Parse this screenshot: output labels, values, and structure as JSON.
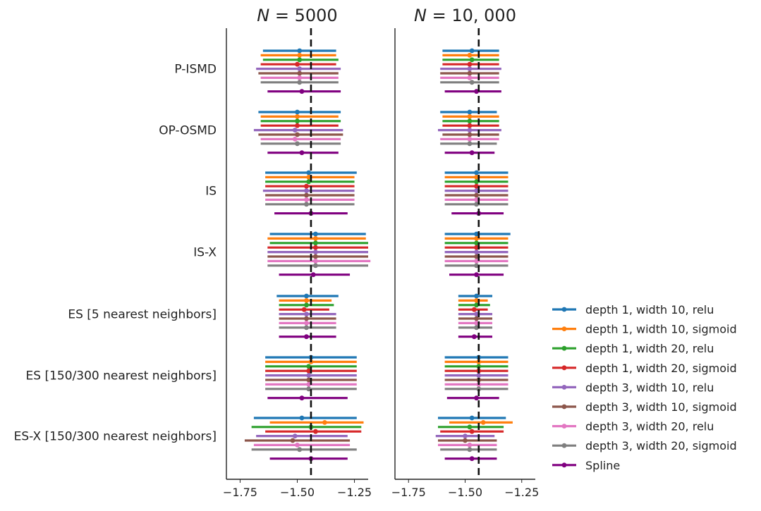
{
  "chart_data": {
    "type": "forest",
    "reference_line": -1.44,
    "xlim": [
      -1.81,
      -1.19
    ],
    "xticks": [
      -1.75,
      -1.5,
      -1.25
    ],
    "xtick_labels": [
      "−1.75",
      "−1.50",
      "−1.25"
    ],
    "categories": [
      "P-ISMD",
      "OP-OSMD",
      "IS",
      "IS-X",
      "ES [5 nearest neighbors]",
      "ES [150/300 nearest neighbors]",
      "ES-X [150/300 nearest neighbors]"
    ],
    "series": [
      {
        "name": "depth 1, width 10, relu",
        "color": "#1f77b4"
      },
      {
        "name": "depth 1, width 10, sigmoid",
        "color": "#ff7f0e"
      },
      {
        "name": "depth 1, width 20, relu",
        "color": "#2ca02c"
      },
      {
        "name": "depth 1, width 20, sigmoid",
        "color": "#d62728"
      },
      {
        "name": "depth 3, width 10, relu",
        "color": "#9467bd"
      },
      {
        "name": "depth 3, width 10, sigmoid",
        "color": "#8c564b"
      },
      {
        "name": "depth 3, width 20, relu",
        "color": "#e377c2"
      },
      {
        "name": "depth 3, width 20, sigmoid",
        "color": "#7f7f7f"
      },
      {
        "name": "Spline",
        "color": "#800080"
      }
    ],
    "panels": [
      {
        "title_var": "N",
        "title_eq": " = 5000",
        "data": [
          [
            [
              -1.65,
              -1.49,
              -1.33
            ],
            [
              -1.66,
              -1.49,
              -1.33
            ],
            [
              -1.65,
              -1.49,
              -1.32
            ],
            [
              -1.66,
              -1.5,
              -1.33
            ],
            [
              -1.68,
              -1.49,
              -1.31
            ],
            [
              -1.67,
              -1.49,
              -1.32
            ],
            [
              -1.66,
              -1.49,
              -1.32
            ],
            [
              -1.66,
              -1.49,
              -1.32
            ],
            [
              -1.63,
              -1.48,
              -1.31
            ]
          ],
          [
            [
              -1.67,
              -1.5,
              -1.31
            ],
            [
              -1.66,
              -1.5,
              -1.32
            ],
            [
              -1.66,
              -1.5,
              -1.31
            ],
            [
              -1.66,
              -1.5,
              -1.32
            ],
            [
              -1.69,
              -1.51,
              -1.3
            ],
            [
              -1.67,
              -1.5,
              -1.3
            ],
            [
              -1.66,
              -1.51,
              -1.31
            ],
            [
              -1.66,
              -1.5,
              -1.31
            ],
            [
              -1.63,
              -1.48,
              -1.32
            ]
          ],
          [
            [
              -1.64,
              -1.45,
              -1.24
            ],
            [
              -1.64,
              -1.45,
              -1.25
            ],
            [
              -1.64,
              -1.45,
              -1.25
            ],
            [
              -1.64,
              -1.46,
              -1.25
            ],
            [
              -1.65,
              -1.46,
              -1.25
            ],
            [
              -1.64,
              -1.46,
              -1.25
            ],
            [
              -1.64,
              -1.46,
              -1.25
            ],
            [
              -1.64,
              -1.46,
              -1.25
            ],
            [
              -1.6,
              -1.44,
              -1.28
            ]
          ],
          [
            [
              -1.62,
              -1.42,
              -1.2
            ],
            [
              -1.63,
              -1.42,
              -1.2
            ],
            [
              -1.62,
              -1.42,
              -1.19
            ],
            [
              -1.63,
              -1.42,
              -1.19
            ],
            [
              -1.63,
              -1.42,
              -1.19
            ],
            [
              -1.63,
              -1.42,
              -1.19
            ],
            [
              -1.63,
              -1.42,
              -1.18
            ],
            [
              -1.63,
              -1.42,
              -1.19
            ],
            [
              -1.58,
              -1.43,
              -1.27
            ]
          ],
          [
            [
              -1.59,
              -1.46,
              -1.32
            ],
            [
              -1.58,
              -1.46,
              -1.35
            ],
            [
              -1.58,
              -1.46,
              -1.34
            ],
            [
              -1.58,
              -1.47,
              -1.36
            ],
            [
              -1.58,
              -1.46,
              -1.33
            ],
            [
              -1.58,
              -1.46,
              -1.33
            ],
            [
              -1.58,
              -1.46,
              -1.33
            ],
            [
              -1.58,
              -1.46,
              -1.33
            ],
            [
              -1.58,
              -1.46,
              -1.33
            ]
          ],
          [
            [
              -1.64,
              -1.44,
              -1.24
            ],
            [
              -1.64,
              -1.44,
              -1.24
            ],
            [
              -1.64,
              -1.45,
              -1.24
            ],
            [
              -1.64,
              -1.45,
              -1.24
            ],
            [
              -1.64,
              -1.45,
              -1.24
            ],
            [
              -1.64,
              -1.45,
              -1.24
            ],
            [
              -1.64,
              -1.45,
              -1.24
            ],
            [
              -1.64,
              -1.45,
              -1.24
            ],
            [
              -1.63,
              -1.48,
              -1.28
            ]
          ],
          [
            [
              -1.69,
              -1.48,
              -1.24
            ],
            [
              -1.62,
              -1.38,
              -1.21
            ],
            [
              -1.7,
              -1.44,
              -1.22
            ],
            [
              -1.64,
              -1.42,
              -1.22
            ],
            [
              -1.68,
              -1.51,
              -1.28
            ],
            [
              -1.73,
              -1.52,
              -1.27
            ],
            [
              -1.69,
              -1.5,
              -1.27
            ],
            [
              -1.7,
              -1.49,
              -1.24
            ],
            [
              -1.62,
              -1.44,
              -1.28
            ]
          ]
        ]
      },
      {
        "title_var": "N",
        "title_eq": " = 10, 000",
        "data": [
          [
            [
              -1.6,
              -1.47,
              -1.35
            ],
            [
              -1.6,
              -1.48,
              -1.35
            ],
            [
              -1.6,
              -1.47,
              -1.35
            ],
            [
              -1.6,
              -1.48,
              -1.35
            ],
            [
              -1.61,
              -1.48,
              -1.34
            ],
            [
              -1.61,
              -1.48,
              -1.35
            ],
            [
              -1.61,
              -1.48,
              -1.35
            ],
            [
              -1.61,
              -1.47,
              -1.35
            ],
            [
              -1.59,
              -1.45,
              -1.34
            ]
          ],
          [
            [
              -1.61,
              -1.48,
              -1.36
            ],
            [
              -1.6,
              -1.48,
              -1.35
            ],
            [
              -1.6,
              -1.48,
              -1.35
            ],
            [
              -1.6,
              -1.48,
              -1.35
            ],
            [
              -1.62,
              -1.48,
              -1.34
            ],
            [
              -1.6,
              -1.48,
              -1.35
            ],
            [
              -1.61,
              -1.48,
              -1.35
            ],
            [
              -1.61,
              -1.48,
              -1.36
            ],
            [
              -1.59,
              -1.47,
              -1.37
            ]
          ],
          [
            [
              -1.59,
              -1.45,
              -1.31
            ],
            [
              -1.59,
              -1.45,
              -1.31
            ],
            [
              -1.59,
              -1.45,
              -1.31
            ],
            [
              -1.59,
              -1.45,
              -1.31
            ],
            [
              -1.59,
              -1.45,
              -1.31
            ],
            [
              -1.59,
              -1.45,
              -1.31
            ],
            [
              -1.59,
              -1.45,
              -1.31
            ],
            [
              -1.59,
              -1.45,
              -1.31
            ],
            [
              -1.56,
              -1.44,
              -1.33
            ]
          ],
          [
            [
              -1.59,
              -1.45,
              -1.3
            ],
            [
              -1.59,
              -1.45,
              -1.31
            ],
            [
              -1.59,
              -1.45,
              -1.31
            ],
            [
              -1.59,
              -1.45,
              -1.31
            ],
            [
              -1.59,
              -1.45,
              -1.31
            ],
            [
              -1.59,
              -1.45,
              -1.31
            ],
            [
              -1.59,
              -1.45,
              -1.31
            ],
            [
              -1.59,
              -1.45,
              -1.31
            ],
            [
              -1.57,
              -1.45,
              -1.33
            ]
          ],
          [
            [
              -1.53,
              -1.45,
              -1.38
            ],
            [
              -1.53,
              -1.45,
              -1.4
            ],
            [
              -1.53,
              -1.45,
              -1.39
            ],
            [
              -1.53,
              -1.46,
              -1.4
            ],
            [
              -1.53,
              -1.45,
              -1.38
            ],
            [
              -1.53,
              -1.45,
              -1.38
            ],
            [
              -1.53,
              -1.45,
              -1.38
            ],
            [
              -1.53,
              -1.45,
              -1.38
            ],
            [
              -1.53,
              -1.46,
              -1.38
            ]
          ],
          [
            [
              -1.59,
              -1.44,
              -1.31
            ],
            [
              -1.59,
              -1.44,
              -1.31
            ],
            [
              -1.59,
              -1.44,
              -1.31
            ],
            [
              -1.59,
              -1.44,
              -1.31
            ],
            [
              -1.59,
              -1.44,
              -1.31
            ],
            [
              -1.59,
              -1.44,
              -1.31
            ],
            [
              -1.59,
              -1.44,
              -1.31
            ],
            [
              -1.59,
              -1.44,
              -1.31
            ],
            [
              -1.58,
              -1.45,
              -1.35
            ]
          ],
          [
            [
              -1.62,
              -1.47,
              -1.32
            ],
            [
              -1.57,
              -1.42,
              -1.29
            ],
            [
              -1.62,
              -1.48,
              -1.33
            ],
            [
              -1.61,
              -1.47,
              -1.33
            ],
            [
              -1.63,
              -1.5,
              -1.37
            ],
            [
              -1.62,
              -1.5,
              -1.36
            ],
            [
              -1.62,
              -1.48,
              -1.36
            ],
            [
              -1.61,
              -1.48,
              -1.36
            ],
            [
              -1.59,
              -1.47,
              -1.36
            ]
          ]
        ]
      }
    ]
  }
}
